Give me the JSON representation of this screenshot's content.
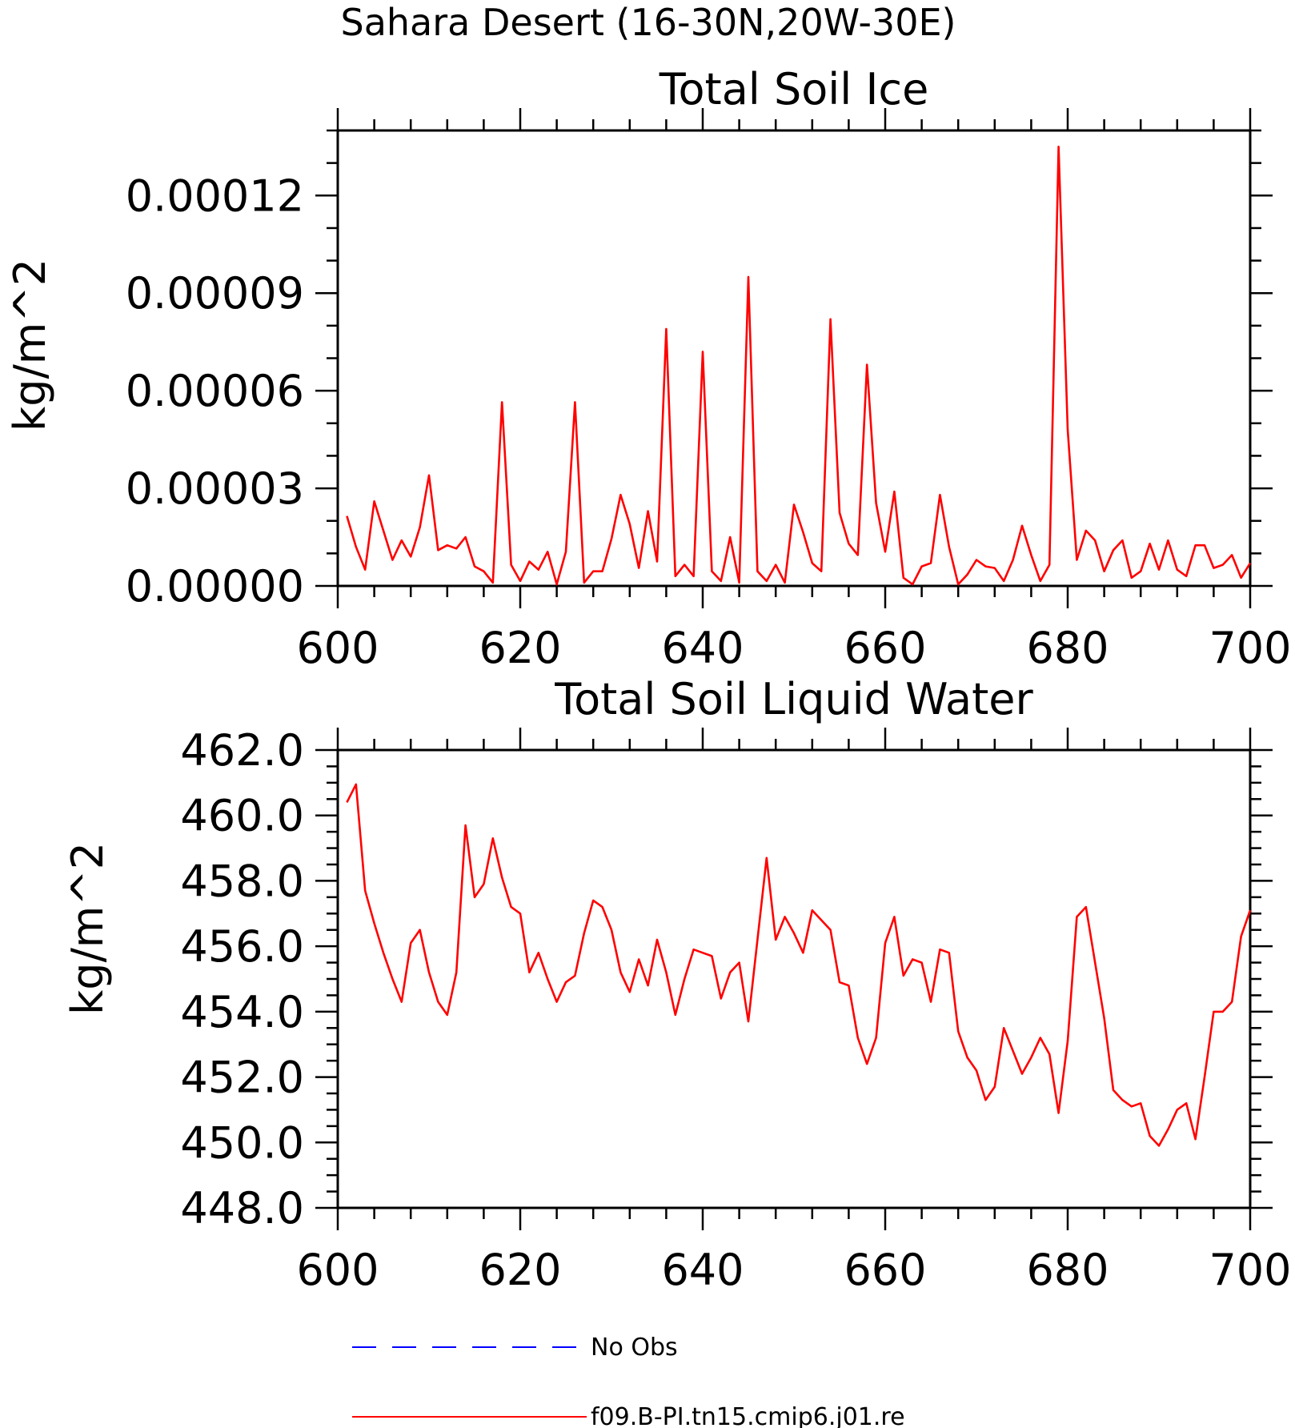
{
  "figure_title": "Sahara Desert (16-30N,20W-30E)",
  "chart_data": [
    {
      "type": "line",
      "title": "Total Soil Ice",
      "xlabel": "",
      "ylabel": "kg/m^2",
      "xlim": [
        600,
        700
      ],
      "ylim": [
        0,
        0.00014
      ],
      "x_ticks": [
        600,
        620,
        640,
        660,
        680,
        700
      ],
      "x_tick_labels": [
        "600",
        "620",
        "640",
        "660",
        "680",
        "700"
      ],
      "y_ticks": [
        0,
        3e-05,
        6e-05,
        9e-05,
        0.00012
      ],
      "y_tick_labels": [
        "0.00000",
        "0.00003",
        "0.00006",
        "0.00009",
        "0.00012"
      ],
      "series": [
        {
          "name": "f09.B-PI.tn15.cmip6.j01.re",
          "color": "#ff0000",
          "x": [
            601,
            602,
            603,
            604,
            605,
            606,
            607,
            608,
            609,
            610,
            611,
            612,
            613,
            614,
            615,
            616,
            617,
            618,
            619,
            620,
            621,
            622,
            623,
            624,
            625,
            626,
            627,
            628,
            629,
            630,
            631,
            632,
            633,
            634,
            635,
            636,
            637,
            638,
            639,
            640,
            641,
            642,
            643,
            644,
            645,
            646,
            647,
            648,
            649,
            650,
            651,
            652,
            653,
            654,
            655,
            656,
            657,
            658,
            659,
            660,
            661,
            662,
            663,
            664,
            665,
            666,
            667,
            668,
            669,
            670,
            671,
            672,
            673,
            674,
            675,
            676,
            677,
            678,
            679,
            680,
            681,
            682,
            683,
            684,
            685,
            686,
            687,
            688,
            689,
            690,
            691,
            692,
            693,
            694,
            695,
            696,
            697,
            698,
            699,
            700
          ],
          "values": [
            2.15e-05,
            1.2e-05,
            5e-06,
            2.6e-05,
            1.7e-05,
            8e-06,
            1.4e-05,
            9e-06,
            1.8e-05,
            3.4e-05,
            1.1e-05,
            1.25e-05,
            1.15e-05,
            1.5e-05,
            6e-06,
            4.5e-06,
            1e-06,
            5.65e-05,
            6.5e-06,
            1.5e-06,
            7.5e-06,
            5e-06,
            1.05e-05,
            5e-07,
            1.05e-05,
            5.65e-05,
            1e-06,
            4.5e-06,
            4.5e-06,
            1.45e-05,
            2.8e-05,
            1.9e-05,
            5.5e-06,
            2.3e-05,
            7.5e-06,
            7.9e-05,
            3e-06,
            6.5e-06,
            3e-06,
            7.2e-05,
            4.5e-06,
            1.5e-06,
            1.5e-05,
            1e-06,
            9.5e-05,
            4.5e-06,
            1.5e-06,
            6.5e-06,
            1e-06,
            2.5e-05,
            1.65e-05,
            7e-06,
            4.5e-06,
            8.2e-05,
            2.25e-05,
            1.3e-05,
            9.5e-06,
            6.8e-05,
            2.55e-05,
            1.05e-05,
            2.9e-05,
            2.5e-06,
            5e-07,
            6e-06,
            7e-06,
            2.8e-05,
            1.2e-05,
            5e-07,
            3.5e-06,
            8e-06,
            6e-06,
            5.5e-06,
            1.5e-06,
            8e-06,
            1.85e-05,
            9.5e-06,
            1.5e-06,
            6.5e-06,
            0.000135,
            4.8e-05,
            8e-06,
            1.7e-05,
            1.4e-05,
            4.5e-06,
            1.1e-05,
            1.4e-05,
            2.5e-06,
            4.5e-06,
            1.3e-05,
            5e-06,
            1.4e-05,
            5e-06,
            3e-06,
            1.25e-05,
            1.25e-05,
            5.5e-06,
            6.5e-06,
            9.5e-06,
            2.5e-06,
            7e-06
          ]
        }
      ]
    },
    {
      "type": "line",
      "title": "Total Soil Liquid Water",
      "xlabel": "",
      "ylabel": "kg/m^2",
      "xlim": [
        600,
        700
      ],
      "ylim": [
        448,
        462
      ],
      "x_ticks": [
        600,
        620,
        640,
        660,
        680,
        700
      ],
      "x_tick_labels": [
        "600",
        "620",
        "640",
        "660",
        "680",
        "700"
      ],
      "y_ticks": [
        448,
        450,
        452,
        454,
        456,
        458,
        460,
        462
      ],
      "y_tick_labels": [
        "448.0",
        "450.0",
        "452.0",
        "454.0",
        "456.0",
        "458.0",
        "460.0",
        "462.0"
      ],
      "series": [
        {
          "name": "f09.B-PI.tn15.cmip6.j01.re",
          "color": "#ff0000",
          "x": [
            601,
            602,
            603,
            604,
            605,
            606,
            607,
            608,
            609,
            610,
            611,
            612,
            613,
            614,
            615,
            616,
            617,
            618,
            619,
            620,
            621,
            622,
            623,
            624,
            625,
            626,
            627,
            628,
            629,
            630,
            631,
            632,
            633,
            634,
            635,
            636,
            637,
            638,
            639,
            640,
            641,
            642,
            643,
            644,
            645,
            646,
            647,
            648,
            649,
            650,
            651,
            652,
            653,
            654,
            655,
            656,
            657,
            658,
            659,
            660,
            661,
            662,
            663,
            664,
            665,
            666,
            667,
            668,
            669,
            670,
            671,
            672,
            673,
            674,
            675,
            676,
            677,
            678,
            679,
            680,
            681,
            682,
            683,
            684,
            685,
            686,
            687,
            688,
            689,
            690,
            691,
            692,
            693,
            694,
            695,
            696,
            697,
            698,
            699,
            700
          ],
          "values": [
            460.4,
            460.95,
            457.7,
            456.7,
            455.8,
            455.0,
            454.3,
            456.1,
            456.5,
            455.2,
            454.3,
            453.9,
            455.2,
            459.7,
            457.5,
            457.9,
            459.3,
            458.1,
            457.2,
            457.0,
            455.2,
            455.8,
            455.0,
            454.3,
            454.9,
            455.1,
            456.4,
            457.4,
            457.2,
            456.5,
            455.2,
            454.6,
            455.6,
            454.8,
            456.2,
            455.2,
            453.9,
            455.0,
            455.9,
            455.8,
            455.7,
            454.4,
            455.2,
            455.5,
            453.7,
            456.2,
            458.7,
            456.2,
            456.9,
            456.4,
            455.8,
            457.1,
            456.8,
            456.5,
            454.9,
            454.8,
            453.2,
            452.4,
            453.2,
            456.1,
            456.9,
            455.1,
            455.6,
            455.5,
            454.3,
            455.9,
            455.8,
            453.4,
            452.6,
            452.2,
            451.3,
            451.7,
            453.5,
            452.8,
            452.1,
            452.6,
            453.2,
            452.7,
            450.9,
            453.1,
            456.9,
            457.2,
            455.5,
            453.8,
            451.6,
            451.3,
            451.1,
            451.2,
            450.2,
            449.9,
            450.4,
            451.0,
            451.2,
            450.1,
            452.0,
            454.0,
            454.0,
            454.3,
            456.3,
            457.1
          ]
        }
      ]
    }
  ],
  "legend": [
    {
      "label": "No Obs",
      "style": "dashed",
      "color": "#0000ff"
    },
    {
      "label": "f09.B-PI.tn15.cmip6.j01.re",
      "style": "solid",
      "color": "#ff0000"
    }
  ]
}
